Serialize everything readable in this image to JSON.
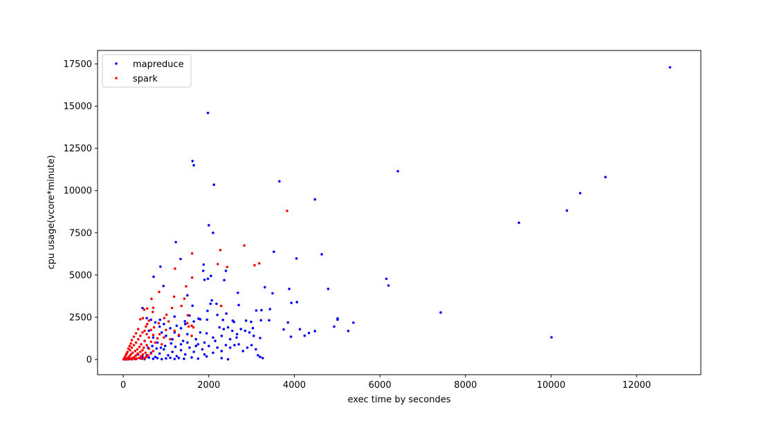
{
  "chart_data": {
    "type": "scatter",
    "title": "",
    "xlabel": "exec time by secondes",
    "ylabel": "cpu usage(vcore*minute)",
    "xlim": [
      -600,
      13500
    ],
    "ylim": [
      -900,
      18300
    ],
    "xticks": [
      0,
      2000,
      4000,
      6000,
      8000,
      10000,
      12000
    ],
    "yticks": [
      0,
      2500,
      5000,
      7500,
      10000,
      12500,
      15000,
      17500
    ],
    "grid": false,
    "legend_position": "top-left",
    "series": [
      {
        "name": "mapreduce",
        "color": "#0000ff",
        "points": [
          [
            12780,
            17300
          ],
          [
            1980,
            14600
          ],
          [
            1620,
            11750
          ],
          [
            1650,
            11500
          ],
          [
            6420,
            11150
          ],
          [
            11270,
            10800
          ],
          [
            3650,
            10550
          ],
          [
            2120,
            10350
          ],
          [
            10680,
            9850
          ],
          [
            4480,
            9480
          ],
          [
            10370,
            8820
          ],
          [
            9250,
            8100
          ],
          [
            2000,
            7950
          ],
          [
            2100,
            7500
          ],
          [
            1230,
            6950
          ],
          [
            3520,
            6380
          ],
          [
            4640,
            6230
          ],
          [
            4050,
            5980
          ],
          [
            1340,
            5950
          ],
          [
            1880,
            5620
          ],
          [
            870,
            5500
          ],
          [
            1870,
            5250
          ],
          [
            2400,
            5250
          ],
          [
            710,
            4900
          ],
          [
            2050,
            4950
          ],
          [
            6150,
            4780
          ],
          [
            1900,
            4720
          ],
          [
            1980,
            4780
          ],
          [
            2360,
            4700
          ],
          [
            6200,
            4380
          ],
          [
            940,
            4350
          ],
          [
            3310,
            4280
          ],
          [
            3880,
            4180
          ],
          [
            4790,
            4180
          ],
          [
            2680,
            3950
          ],
          [
            3490,
            3920
          ],
          [
            1500,
            3800
          ],
          [
            2070,
            3500
          ],
          [
            3930,
            3350
          ],
          [
            4060,
            3400
          ],
          [
            2040,
            3300
          ],
          [
            2180,
            3300
          ],
          [
            2700,
            3220
          ],
          [
            1620,
            3180
          ],
          [
            450,
            3050
          ],
          [
            3430,
            2980
          ],
          [
            3110,
            2900
          ],
          [
            3230,
            2920
          ],
          [
            1970,
            2880
          ],
          [
            7420,
            2780
          ],
          [
            2410,
            2720
          ],
          [
            2200,
            2640
          ],
          [
            1200,
            2540
          ],
          [
            5010,
            2430
          ],
          [
            5010,
            2360
          ],
          [
            3220,
            2320
          ],
          [
            3410,
            2320
          ],
          [
            1760,
            2420
          ],
          [
            1800,
            2380
          ],
          [
            1960,
            2360
          ],
          [
            2330,
            2340
          ],
          [
            2560,
            2300
          ],
          [
            2870,
            2300
          ],
          [
            2590,
            2220
          ],
          [
            860,
            2350
          ],
          [
            550,
            2450
          ],
          [
            2990,
            2230
          ],
          [
            1440,
            2260
          ],
          [
            3850,
            2190
          ],
          [
            5380,
            2180
          ],
          [
            4930,
            1950
          ],
          [
            3030,
            1860
          ],
          [
            3750,
            1780
          ],
          [
            4130,
            1790
          ],
          [
            5260,
            1690
          ],
          [
            4480,
            1680
          ],
          [
            4340,
            1570
          ],
          [
            4240,
            1410
          ],
          [
            3920,
            1350
          ],
          [
            10010,
            1310
          ],
          [
            3200,
            1270
          ],
          [
            2850,
            1700
          ],
          [
            2660,
            1500
          ],
          [
            2500,
            1200
          ],
          [
            2300,
            1400
          ],
          [
            2100,
            1300
          ],
          [
            1950,
            1550
          ],
          [
            1800,
            1600
          ],
          [
            1700,
            1200
          ],
          [
            1500,
            1500
          ],
          [
            1400,
            1100
          ],
          [
            1300,
            1400
          ],
          [
            1200,
            1600
          ],
          [
            1150,
            1200
          ],
          [
            1000,
            1400
          ],
          [
            900,
            1600
          ],
          [
            800,
            1000
          ],
          [
            700,
            1300
          ],
          [
            600,
            1700
          ],
          [
            500,
            1100
          ],
          [
            2600,
            850
          ],
          [
            2700,
            900
          ],
          [
            2800,
            500
          ],
          [
            2900,
            700
          ],
          [
            3000,
            850
          ],
          [
            3100,
            600
          ],
          [
            3150,
            250
          ],
          [
            3200,
            150
          ],
          [
            3260,
            80
          ],
          [
            2500,
            700
          ],
          [
            2400,
            850
          ],
          [
            2300,
            500
          ],
          [
            2200,
            700
          ],
          [
            2100,
            400
          ],
          [
            2000,
            800
          ],
          [
            1900,
            300
          ],
          [
            1850,
            600
          ],
          [
            1750,
            900
          ],
          [
            1650,
            450
          ],
          [
            1550,
            700
          ],
          [
            1450,
            300
          ],
          [
            1350,
            550
          ],
          [
            1250,
            200
          ],
          [
            1150,
            450
          ],
          [
            1050,
            250
          ],
          [
            950,
            600
          ],
          [
            850,
            350
          ],
          [
            750,
            150
          ],
          [
            650,
            400
          ],
          [
            550,
            250
          ],
          [
            450,
            150
          ],
          [
            350,
            300
          ],
          [
            250,
            100
          ],
          [
            150,
            50
          ],
          [
            80,
            30
          ],
          [
            2300,
            80
          ],
          [
            2450,
            10
          ],
          [
            1950,
            180
          ],
          [
            1750,
            50
          ],
          [
            1600,
            120
          ],
          [
            1420,
            40
          ],
          [
            1300,
            90
          ],
          [
            1200,
            30
          ],
          [
            1100,
            100
          ],
          [
            1000,
            60
          ],
          [
            900,
            20
          ],
          [
            800,
            80
          ],
          [
            700,
            40
          ],
          [
            600,
            110
          ],
          [
            500,
            20
          ],
          [
            400,
            70
          ],
          [
            300,
            30
          ],
          [
            200,
            10
          ],
          [
            120,
            15
          ],
          [
            60,
            5
          ],
          [
            1550,
            2600
          ],
          [
            1650,
            2250
          ],
          [
            1450,
            2100
          ],
          [
            1350,
            1850
          ],
          [
            1250,
            2000
          ],
          [
            1100,
            1850
          ],
          [
            950,
            2100
          ],
          [
            850,
            1950
          ],
          [
            750,
            2200
          ],
          [
            650,
            2350
          ],
          [
            2250,
            1900
          ],
          [
            2350,
            1800
          ],
          [
            2450,
            1900
          ],
          [
            2550,
            1700
          ],
          [
            2750,
            1800
          ],
          [
            2950,
            1600
          ],
          [
            3050,
            1400
          ],
          [
            2650,
            1300
          ],
          [
            2150,
            1100
          ],
          [
            1900,
            1000
          ],
          [
            1700,
            800
          ],
          [
            1500,
            1000
          ],
          [
            1350,
            900
          ],
          [
            1220,
            750
          ],
          [
            1120,
            950
          ],
          [
            980,
            800
          ],
          [
            880,
            700
          ],
          [
            780,
            650
          ],
          [
            680,
            800
          ],
          [
            580,
            700
          ]
        ]
      },
      {
        "name": "spark",
        "color": "#ff0000",
        "points": [
          [
            3830,
            8800
          ],
          [
            2830,
            6750
          ],
          [
            2270,
            6480
          ],
          [
            1610,
            6280
          ],
          [
            3180,
            5690
          ],
          [
            3070,
            5580
          ],
          [
            2210,
            5650
          ],
          [
            2430,
            5480
          ],
          [
            1210,
            5380
          ],
          [
            1610,
            4850
          ],
          [
            1470,
            4330
          ],
          [
            840,
            4000
          ],
          [
            1190,
            3720
          ],
          [
            1430,
            3600
          ],
          [
            660,
            3590
          ],
          [
            1360,
            3170
          ],
          [
            2290,
            3170
          ],
          [
            700,
            3060
          ],
          [
            560,
            3020
          ],
          [
            490,
            2950
          ],
          [
            1140,
            3050
          ],
          [
            690,
            2820
          ],
          [
            1010,
            2650
          ],
          [
            1510,
            2620
          ],
          [
            960,
            2450
          ],
          [
            460,
            2450
          ],
          [
            400,
            2380
          ],
          [
            600,
            2300
          ],
          [
            1060,
            2250
          ],
          [
            1500,
            2150
          ],
          [
            830,
            2150
          ],
          [
            560,
            2100
          ],
          [
            1600,
            2000
          ],
          [
            1530,
            1950
          ],
          [
            1640,
            1900
          ],
          [
            720,
            1900
          ],
          [
            530,
            1950
          ],
          [
            350,
            1800
          ],
          [
            500,
            1700
          ],
          [
            650,
            1750
          ],
          [
            1000,
            1750
          ],
          [
            1200,
            1700
          ],
          [
            450,
            1600
          ],
          [
            300,
            1550
          ],
          [
            550,
            1500
          ],
          [
            700,
            1450
          ],
          [
            850,
            1500
          ],
          [
            1300,
            1450
          ],
          [
            1600,
            1400
          ],
          [
            400,
            1400
          ],
          [
            250,
            1350
          ],
          [
            600,
            1300
          ],
          [
            800,
            1250
          ],
          [
            950,
            1300
          ],
          [
            1100,
            1200
          ],
          [
            350,
            1200
          ],
          [
            200,
            1150
          ],
          [
            500,
            1100
          ],
          [
            650,
            1050
          ],
          [
            750,
            1000
          ],
          [
            300,
            1000
          ],
          [
            180,
            950
          ],
          [
            420,
            900
          ],
          [
            550,
            850
          ],
          [
            900,
            900
          ],
          [
            250,
            850
          ],
          [
            150,
            800
          ],
          [
            380,
            750
          ],
          [
            480,
            700
          ],
          [
            600,
            650
          ],
          [
            200,
            700
          ],
          [
            120,
            650
          ],
          [
            330,
            600
          ],
          [
            450,
            550
          ],
          [
            700,
            500
          ],
          [
            160,
            550
          ],
          [
            280,
            500
          ],
          [
            400,
            450
          ],
          [
            520,
            400
          ],
          [
            650,
            350
          ],
          [
            100,
            450
          ],
          [
            220,
            400
          ],
          [
            340,
            350
          ],
          [
            460,
            300
          ],
          [
            580,
            250
          ],
          [
            80,
            350
          ],
          [
            180,
            300
          ],
          [
            300,
            250
          ],
          [
            420,
            200
          ],
          [
            540,
            150
          ],
          [
            60,
            250
          ],
          [
            150,
            200
          ],
          [
            260,
            150
          ],
          [
            380,
            100
          ],
          [
            500,
            80
          ],
          [
            40,
            150
          ],
          [
            120,
            120
          ],
          [
            220,
            90
          ],
          [
            320,
            60
          ],
          [
            440,
            40
          ],
          [
            30,
            80
          ],
          [
            90,
            60
          ],
          [
            170,
            40
          ],
          [
            270,
            20
          ],
          [
            20,
            30
          ],
          [
            50,
            10
          ],
          [
            110,
            5
          ],
          [
            190,
            15
          ],
          [
            10,
            5
          ],
          [
            70,
            25
          ]
        ]
      }
    ]
  }
}
